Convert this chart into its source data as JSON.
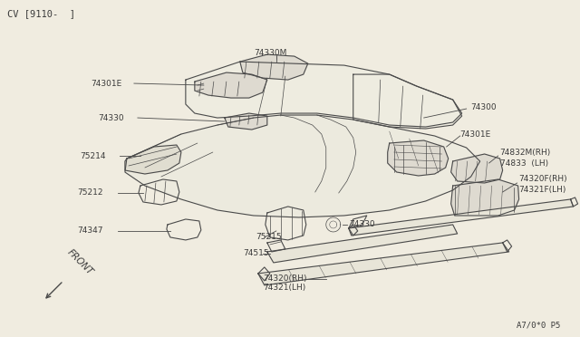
{
  "background_color": "#f0ece0",
  "title_text": "CV [9110-  ]",
  "footer_text": "A7/0*0 P5",
  "front_label": "FRONT",
  "line_color": "#4a4a4a",
  "text_color": "#3a3a3a",
  "label_fontsize": 6.5,
  "title_fontsize": 7.5,
  "footer_fontsize": 6.5,
  "front_fontsize": 7.5
}
